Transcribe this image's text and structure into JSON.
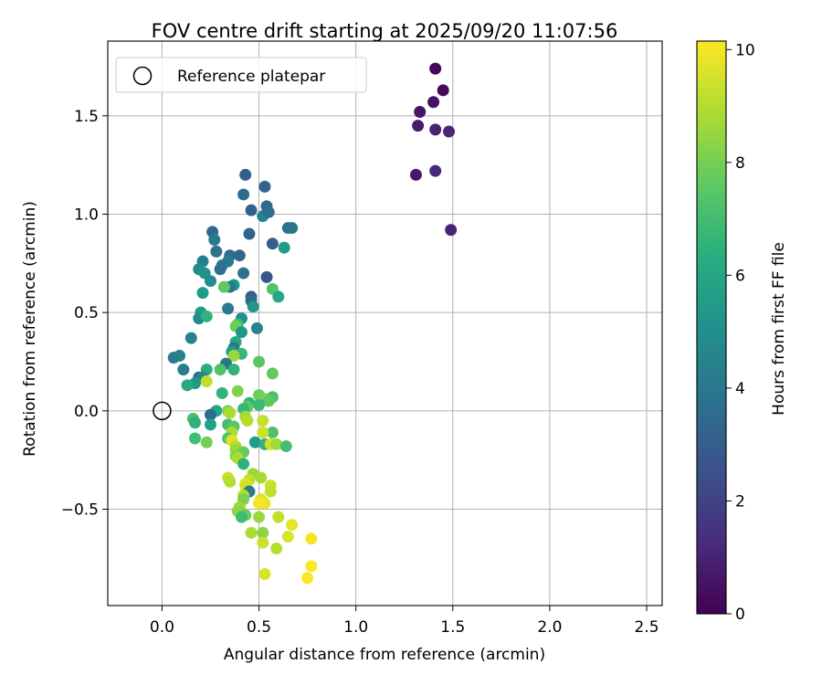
{
  "chart_data": {
    "type": "scatter",
    "title": "FOV centre drift starting at 2025/09/20 11:07:56",
    "xlabel": "Angular distance from reference (arcmin)",
    "ylabel": "Rotation from reference (arcmin)",
    "xlim": [
      -0.28,
      2.58
    ],
    "ylim": [
      -0.99,
      1.88
    ],
    "xticks": [
      0.0,
      0.5,
      1.0,
      1.5,
      2.0,
      2.5
    ],
    "xtick_labels": [
      "0.0",
      "0.5",
      "1.0",
      "1.5",
      "2.0",
      "2.5"
    ],
    "yticks": [
      -0.5,
      0.0,
      0.5,
      1.0,
      1.5
    ],
    "ytick_labels": [
      "−0.5",
      "0.0",
      "0.5",
      "1.0",
      "1.5"
    ],
    "grid": true,
    "legend": {
      "placement": "top-left",
      "entries": [
        "Reference platepar"
      ]
    },
    "reference_point": {
      "x": 0.0,
      "y": 0.0,
      "label": "Reference platepar"
    },
    "colorbar": {
      "label": "Hours from first FF file",
      "range": [
        0,
        10.15
      ],
      "ticks": [
        0,
        2,
        4,
        6,
        8,
        10
      ],
      "tick_labels": [
        "0",
        "2",
        "4",
        "6",
        "8",
        "10"
      ],
      "colormap": "viridis"
    },
    "series": [
      {
        "name": "FF files",
        "points": [
          {
            "x": 1.41,
            "y": 1.74,
            "c": 0.2
          },
          {
            "x": 1.45,
            "y": 1.63,
            "c": 0.3
          },
          {
            "x": 1.4,
            "y": 1.57,
            "c": 0.5
          },
          {
            "x": 1.33,
            "y": 1.52,
            "c": 0.6
          },
          {
            "x": 1.32,
            "y": 1.45,
            "c": 0.8
          },
          {
            "x": 1.41,
            "y": 1.43,
            "c": 1.0
          },
          {
            "x": 1.48,
            "y": 1.42,
            "c": 1.1
          },
          {
            "x": 1.31,
            "y": 1.2,
            "c": 0.7
          },
          {
            "x": 1.41,
            "y": 1.22,
            "c": 1.2
          },
          {
            "x": 1.49,
            "y": 0.92,
            "c": 1.0
          },
          {
            "x": 0.43,
            "y": 1.2,
            "c": 3.0
          },
          {
            "x": 0.53,
            "y": 1.14,
            "c": 3.2
          },
          {
            "x": 0.42,
            "y": 1.1,
            "c": 3.5
          },
          {
            "x": 0.54,
            "y": 1.04,
            "c": 3.3
          },
          {
            "x": 0.46,
            "y": 1.02,
            "c": 3.1
          },
          {
            "x": 0.52,
            "y": 0.99,
            "c": 4.5
          },
          {
            "x": 0.55,
            "y": 1.01,
            "c": 3.6
          },
          {
            "x": 0.65,
            "y": 0.93,
            "c": 3.7
          },
          {
            "x": 0.67,
            "y": 0.93,
            "c": 3.9
          },
          {
            "x": 0.26,
            "y": 0.91,
            "c": 3.4
          },
          {
            "x": 0.45,
            "y": 0.9,
            "c": 3.2
          },
          {
            "x": 0.27,
            "y": 0.87,
            "c": 4.1
          },
          {
            "x": 0.57,
            "y": 0.85,
            "c": 3.0
          },
          {
            "x": 0.63,
            "y": 0.83,
            "c": 5.6
          },
          {
            "x": 0.28,
            "y": 0.81,
            "c": 3.9
          },
          {
            "x": 0.35,
            "y": 0.79,
            "c": 3.6
          },
          {
            "x": 0.4,
            "y": 0.79,
            "c": 3.3
          },
          {
            "x": 0.34,
            "y": 0.76,
            "c": 4.2
          },
          {
            "x": 0.21,
            "y": 0.76,
            "c": 4.4
          },
          {
            "x": 0.31,
            "y": 0.74,
            "c": 4.0
          },
          {
            "x": 0.19,
            "y": 0.72,
            "c": 4.8
          },
          {
            "x": 0.3,
            "y": 0.72,
            "c": 3.7
          },
          {
            "x": 0.42,
            "y": 0.7,
            "c": 3.8
          },
          {
            "x": 0.22,
            "y": 0.7,
            "c": 5.2
          },
          {
            "x": 0.25,
            "y": 0.66,
            "c": 4.9
          },
          {
            "x": 0.54,
            "y": 0.68,
            "c": 2.8
          },
          {
            "x": 0.37,
            "y": 0.64,
            "c": 5.4
          },
          {
            "x": 0.35,
            "y": 0.63,
            "c": 4.0
          },
          {
            "x": 0.32,
            "y": 0.63,
            "c": 7.6
          },
          {
            "x": 0.57,
            "y": 0.62,
            "c": 7.4
          },
          {
            "x": 0.21,
            "y": 0.6,
            "c": 5.5
          },
          {
            "x": 0.6,
            "y": 0.58,
            "c": 6.0
          },
          {
            "x": 0.46,
            "y": 0.58,
            "c": 3.1
          },
          {
            "x": 0.46,
            "y": 0.56,
            "c": 3.4
          },
          {
            "x": 0.34,
            "y": 0.52,
            "c": 4.2
          },
          {
            "x": 0.47,
            "y": 0.53,
            "c": 5.3
          },
          {
            "x": 0.2,
            "y": 0.5,
            "c": 5.6
          },
          {
            "x": 0.19,
            "y": 0.47,
            "c": 4.9
          },
          {
            "x": 0.23,
            "y": 0.48,
            "c": 6.5
          },
          {
            "x": 0.41,
            "y": 0.47,
            "c": 5.0
          },
          {
            "x": 0.39,
            "y": 0.44,
            "c": 6.9
          },
          {
            "x": 0.38,
            "y": 0.43,
            "c": 7.9
          },
          {
            "x": 0.41,
            "y": 0.4,
            "c": 5.3
          },
          {
            "x": 0.49,
            "y": 0.42,
            "c": 4.6
          },
          {
            "x": 0.15,
            "y": 0.37,
            "c": 4.5
          },
          {
            "x": 0.38,
            "y": 0.35,
            "c": 6.1
          },
          {
            "x": 0.37,
            "y": 0.32,
            "c": 4.0
          },
          {
            "x": 0.36,
            "y": 0.3,
            "c": 5.6
          },
          {
            "x": 0.41,
            "y": 0.29,
            "c": 6.7
          },
          {
            "x": 0.37,
            "y": 0.28,
            "c": 8.6
          },
          {
            "x": 0.09,
            "y": 0.28,
            "c": 4.5
          },
          {
            "x": 0.06,
            "y": 0.27,
            "c": 4.2
          },
          {
            "x": 0.33,
            "y": 0.24,
            "c": 4.0
          },
          {
            "x": 0.5,
            "y": 0.25,
            "c": 7.5
          },
          {
            "x": 0.11,
            "y": 0.21,
            "c": 4.4
          },
          {
            "x": 0.3,
            "y": 0.21,
            "c": 7.3
          },
          {
            "x": 0.37,
            "y": 0.21,
            "c": 6.5
          },
          {
            "x": 0.57,
            "y": 0.19,
            "c": 7.7
          },
          {
            "x": 0.23,
            "y": 0.21,
            "c": 6.3
          },
          {
            "x": 0.19,
            "y": 0.17,
            "c": 3.6
          },
          {
            "x": 0.21,
            "y": 0.17,
            "c": 4.7
          },
          {
            "x": 0.23,
            "y": 0.15,
            "c": 9.2
          },
          {
            "x": 0.17,
            "y": 0.14,
            "c": 5.5
          },
          {
            "x": 0.13,
            "y": 0.13,
            "c": 6.1
          },
          {
            "x": 0.39,
            "y": 0.1,
            "c": 8.2
          },
          {
            "x": 0.31,
            "y": 0.09,
            "c": 6.5
          },
          {
            "x": 0.5,
            "y": 0.08,
            "c": 7.9
          },
          {
            "x": 0.57,
            "y": 0.07,
            "c": 7.2
          },
          {
            "x": 0.53,
            "y": 0.06,
            "c": 8.1
          },
          {
            "x": 0.45,
            "y": 0.04,
            "c": 6.5
          },
          {
            "x": 0.55,
            "y": 0.05,
            "c": 7.6
          },
          {
            "x": 0.5,
            "y": 0.03,
            "c": 6.9
          },
          {
            "x": 0.44,
            "y": 0.02,
            "c": 7.6
          },
          {
            "x": 0.42,
            "y": 0.01,
            "c": 6.8
          },
          {
            "x": 0.28,
            "y": 0.0,
            "c": 6.0
          },
          {
            "x": 0.34,
            "y": 0.0,
            "c": 8.2
          },
          {
            "x": 0.35,
            "y": -0.01,
            "c": 8.9
          },
          {
            "x": 0.25,
            "y": -0.02,
            "c": 3.6
          },
          {
            "x": 0.43,
            "y": -0.03,
            "c": 8.8
          },
          {
            "x": 0.16,
            "y": -0.04,
            "c": 7.2
          },
          {
            "x": 0.44,
            "y": -0.05,
            "c": 9.0
          },
          {
            "x": 0.52,
            "y": -0.05,
            "c": 9.3
          },
          {
            "x": 0.17,
            "y": -0.06,
            "c": 6.5
          },
          {
            "x": 0.25,
            "y": -0.07,
            "c": 5.8
          },
          {
            "x": 0.34,
            "y": -0.07,
            "c": 7.1
          },
          {
            "x": 0.37,
            "y": -0.08,
            "c": 7.5
          },
          {
            "x": 0.57,
            "y": -0.11,
            "c": 7.3
          },
          {
            "x": 0.52,
            "y": -0.11,
            "c": 9.4
          },
          {
            "x": 0.36,
            "y": -0.11,
            "c": 8.9
          },
          {
            "x": 0.17,
            "y": -0.14,
            "c": 7.0
          },
          {
            "x": 0.34,
            "y": -0.14,
            "c": 7.4
          },
          {
            "x": 0.36,
            "y": -0.15,
            "c": 9.7
          },
          {
            "x": 0.48,
            "y": -0.16,
            "c": 5.6
          },
          {
            "x": 0.53,
            "y": -0.17,
            "c": 6.6
          },
          {
            "x": 0.56,
            "y": -0.17,
            "c": 9.5
          },
          {
            "x": 0.59,
            "y": -0.17,
            "c": 8.7
          },
          {
            "x": 0.64,
            "y": -0.18,
            "c": 7.1
          },
          {
            "x": 0.23,
            "y": -0.16,
            "c": 8.0
          },
          {
            "x": 0.38,
            "y": -0.18,
            "c": 9.0
          },
          {
            "x": 0.38,
            "y": -0.2,
            "c": 8.6
          },
          {
            "x": 0.42,
            "y": -0.21,
            "c": 7.8
          },
          {
            "x": 0.38,
            "y": -0.23,
            "c": 8.2
          },
          {
            "x": 0.39,
            "y": -0.24,
            "c": 8.9
          },
          {
            "x": 0.42,
            "y": -0.27,
            "c": 6.4
          },
          {
            "x": 0.47,
            "y": -0.32,
            "c": 8.6
          },
          {
            "x": 0.51,
            "y": -0.34,
            "c": 8.8
          },
          {
            "x": 0.34,
            "y": -0.34,
            "c": 9.3
          },
          {
            "x": 0.45,
            "y": -0.35,
            "c": 9.2
          },
          {
            "x": 0.35,
            "y": -0.36,
            "c": 9.0
          },
          {
            "x": 0.43,
            "y": -0.37,
            "c": 9.7
          },
          {
            "x": 0.56,
            "y": -0.38,
            "c": 9.4
          },
          {
            "x": 0.43,
            "y": -0.38,
            "c": 9.5
          },
          {
            "x": 0.45,
            "y": -0.41,
            "c": 4.2
          },
          {
            "x": 0.56,
            "y": -0.41,
            "c": 9.2
          },
          {
            "x": 0.42,
            "y": -0.43,
            "c": 9.0
          },
          {
            "x": 0.51,
            "y": -0.45,
            "c": 9.6
          },
          {
            "x": 0.42,
            "y": -0.45,
            "c": 8.1
          },
          {
            "x": 0.53,
            "y": -0.47,
            "c": 9.8
          },
          {
            "x": 0.5,
            "y": -0.47,
            "c": 10.0
          },
          {
            "x": 0.4,
            "y": -0.49,
            "c": 8.6
          },
          {
            "x": 0.39,
            "y": -0.51,
            "c": 8.4
          },
          {
            "x": 0.43,
            "y": -0.53,
            "c": 7.8
          },
          {
            "x": 0.41,
            "y": -0.54,
            "c": 7.0
          },
          {
            "x": 0.5,
            "y": -0.54,
            "c": 8.6
          },
          {
            "x": 0.6,
            "y": -0.54,
            "c": 9.2
          },
          {
            "x": 0.67,
            "y": -0.58,
            "c": 9.8
          },
          {
            "x": 0.46,
            "y": -0.62,
            "c": 8.9
          },
          {
            "x": 0.52,
            "y": -0.62,
            "c": 8.4
          },
          {
            "x": 0.65,
            "y": -0.64,
            "c": 9.6
          },
          {
            "x": 0.77,
            "y": -0.65,
            "c": 10.0
          },
          {
            "x": 0.52,
            "y": -0.67,
            "c": 9.4
          },
          {
            "x": 0.59,
            "y": -0.7,
            "c": 9.0
          },
          {
            "x": 0.77,
            "y": -0.79,
            "c": 10.1
          },
          {
            "x": 0.53,
            "y": -0.83,
            "c": 9.6
          },
          {
            "x": 0.75,
            "y": -0.85,
            "c": 10.1
          }
        ]
      }
    ]
  }
}
